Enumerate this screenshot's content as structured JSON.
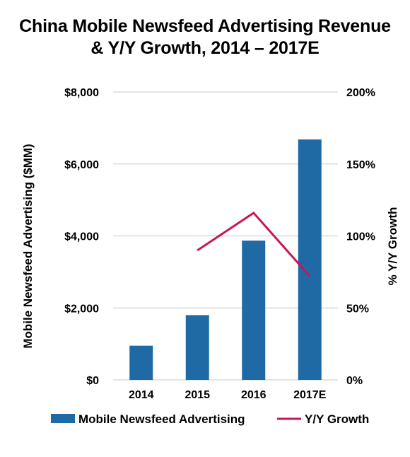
{
  "title_lines": [
    "China Mobile Newsfeed Advertising Revenue",
    "& Y/Y Growth, 2014 – 2017E"
  ],
  "colors": {
    "bar": "#1f6aa5",
    "line": "#c8155a",
    "grid": "#c8c8c8"
  },
  "chart_data": {
    "type": "bar",
    "title": "China Mobile Newsfeed Advertising Revenue & Y/Y Growth, 2014 – 2017E",
    "categories": [
      "2014",
      "2015",
      "2016",
      "2017E"
    ],
    "series": [
      {
        "name": "Mobile Newsfeed Advertising",
        "type": "bar",
        "axis": "left",
        "values": [
          950,
          1800,
          3870,
          6680
        ]
      },
      {
        "name": "Y/Y Growth",
        "type": "line",
        "axis": "right",
        "values": [
          null,
          90,
          116,
          72
        ]
      }
    ],
    "ylabel": "Mobile Newsfeed Advertising ($MM)",
    "y2label": "% Y/Y Growth",
    "ylim": [
      0,
      8000
    ],
    "y2lim": [
      0,
      200
    ],
    "yticks": [
      "$0",
      "$2,000",
      "$4,000",
      "$6,000",
      "$8,000"
    ],
    "y2ticks": [
      "0%",
      "50%",
      "100%",
      "150%",
      "200%"
    ],
    "grid": true,
    "legend": "bottom"
  }
}
